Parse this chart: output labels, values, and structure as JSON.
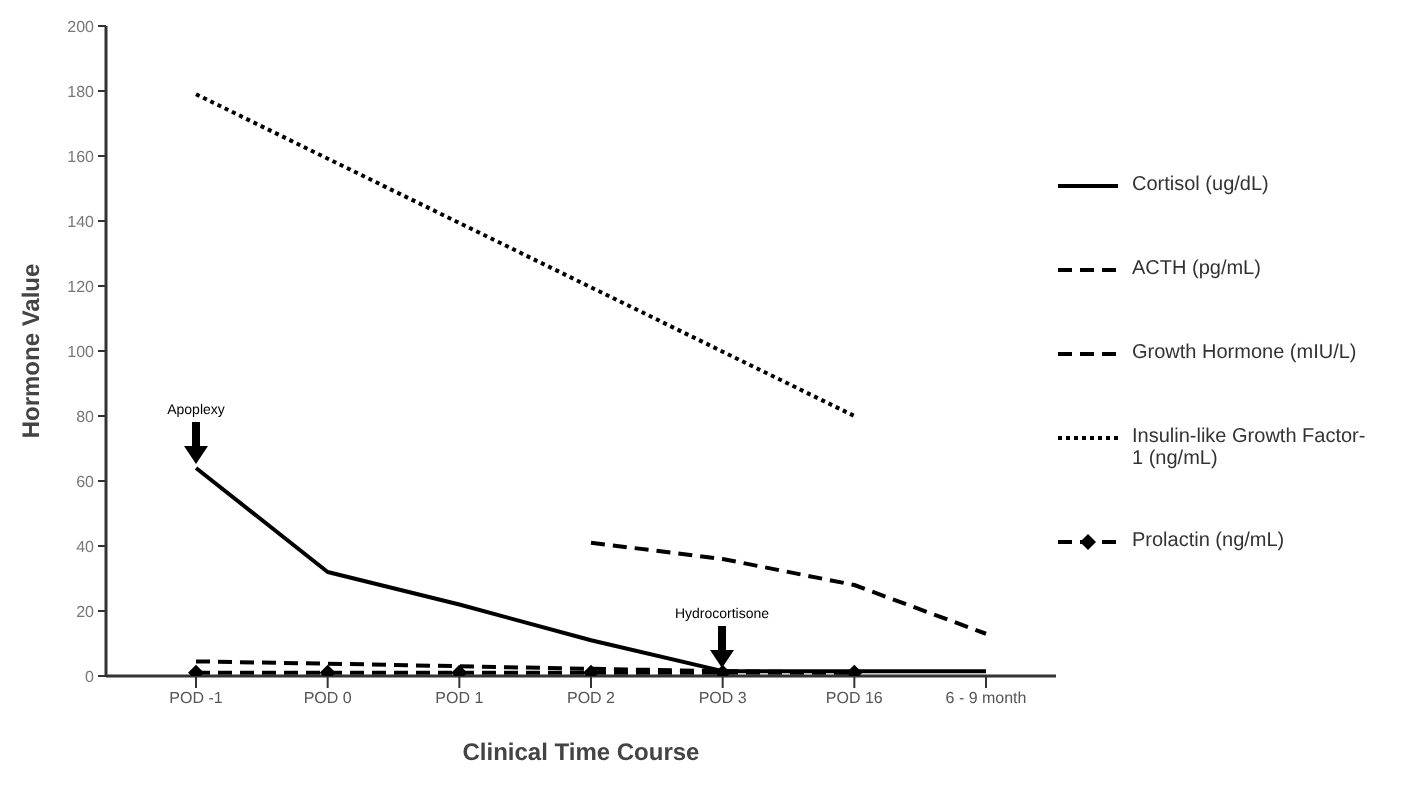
{
  "chart_data": {
    "type": "line",
    "xlabel": "Clinical Time Course",
    "ylabel": "Hormone Value",
    "categories": [
      "POD -1",
      "POD 0",
      "POD 1",
      "POD 2",
      "POD 3",
      "POD 16",
      "6 - 9 month"
    ],
    "series": [
      {
        "name": "Cortisol (ug/dL)",
        "color": "#000000",
        "line_style": "solid",
        "marker": "none",
        "values": [
          64,
          32,
          22,
          11,
          1.5,
          1.5,
          1.5
        ]
      },
      {
        "name": "ACTH (pg/mL)",
        "color": "#000000",
        "line_style": "dashed",
        "marker": "none",
        "values": [
          null,
          null,
          null,
          41,
          36,
          28,
          13
        ]
      },
      {
        "name": "Growth Hormone (mIU/L)",
        "color": "#000000",
        "line_style": "dashed",
        "marker": "none",
        "values": [
          4.5,
          3.8,
          3,
          2.2,
          1.5,
          1,
          null
        ]
      },
      {
        "name": "Insulin-like Growth Factor-1 (ng/mL)",
        "color": "#000000",
        "line_style": "dotted",
        "marker": "none",
        "values": [
          179,
          null,
          null,
          null,
          null,
          80,
          null
        ]
      },
      {
        "name": "Prolactin (ng/mL)",
        "color": "#000000",
        "line_style": "dashed",
        "marker": "diamond",
        "values": [
          1,
          1,
          1,
          1,
          1,
          1,
          null
        ]
      }
    ],
    "ylim": [
      0,
      200
    ],
    "yticks": [
      0,
      20,
      40,
      60,
      80,
      100,
      120,
      140,
      160,
      180,
      200
    ],
    "grid": false,
    "legend": "right",
    "annotations": [
      "Apoplexy",
      "Hydrocortisone"
    ]
  }
}
